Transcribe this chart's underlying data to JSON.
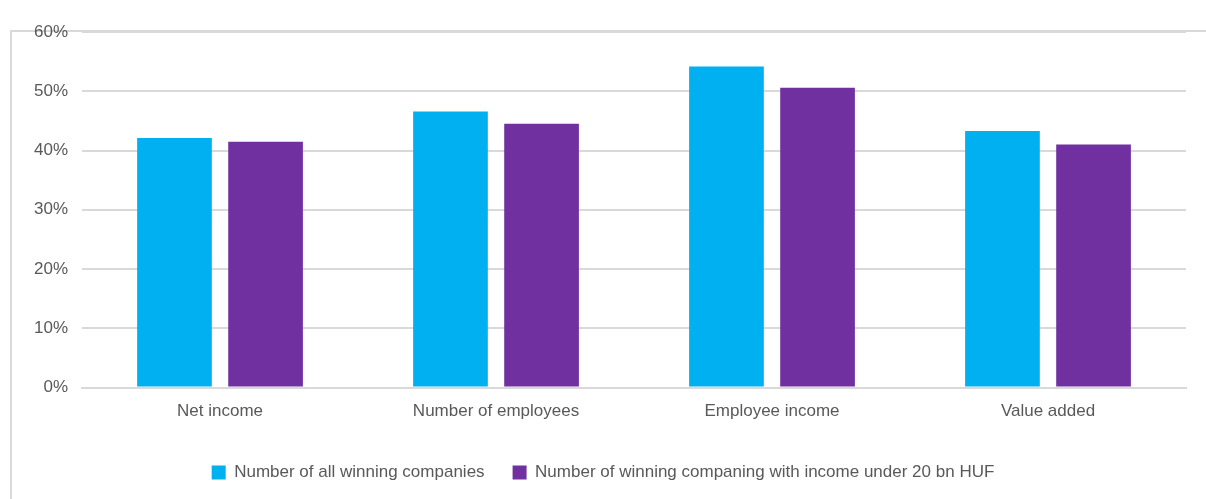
{
  "chart_data": {
    "type": "bar",
    "categories": [
      "Net income",
      "Number of employees",
      "Employee income",
      "Value added"
    ],
    "series": [
      {
        "name": "Number of all winning companies",
        "color": "#00b0f0",
        "values": [
          42.1,
          46.6,
          54.2,
          43.3
        ]
      },
      {
        "name": "Number of winning companing with income under 20 bn HUF",
        "color": "#7030a0",
        "values": [
          41.5,
          44.5,
          50.6,
          41.0
        ]
      }
    ],
    "ylim": [
      0,
      60
    ],
    "yticks": [
      {
        "value": 0,
        "label": "0%"
      },
      {
        "value": 10,
        "label": "10%"
      },
      {
        "value": 20,
        "label": "20%"
      },
      {
        "value": 30,
        "label": "30%"
      },
      {
        "value": 40,
        "label": "40%"
      },
      {
        "value": 50,
        "label": "50%"
      },
      {
        "value": 60,
        "label": "60%"
      }
    ],
    "grid": "y",
    "legend": "bottom"
  }
}
